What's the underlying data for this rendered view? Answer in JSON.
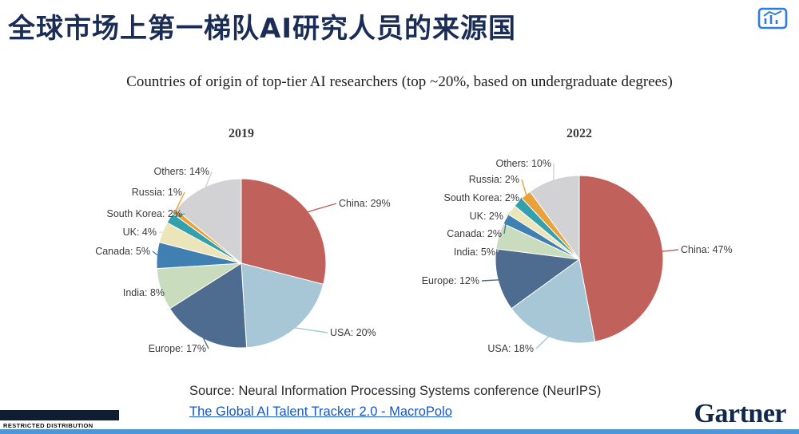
{
  "page": {
    "title_zh": "全球市场上第一梯队AI研究人员的来源国",
    "subtitle": "Countries of origin of top-tier AI researchers (top ~20%, based on undergraduate degrees)",
    "source_line1": "Source: Neural Information Processing Systems conference (NeurIPS)",
    "source_link": "The Global AI Talent Tracker 2.0 - MacroPolo",
    "footer_classification": "RESTRICTED DISTRIBUTION",
    "brand": "Gartner",
    "header_icon": "chart-presentation-icon"
  },
  "colors": {
    "title_navy": "#1b2d55",
    "brand_navy": "#13294b",
    "link_blue": "#1356cc",
    "strip_blue": "#4e96d8",
    "bar_dark": "#101c30",
    "icon_blue": "#2e7de2"
  },
  "chart_data": [
    {
      "type": "pie",
      "title": "2019",
      "labels": [
        "China",
        "USA",
        "Europe",
        "India",
        "Canada",
        "UK",
        "South Korea",
        "Russia",
        "Others"
      ],
      "values": [
        29,
        20,
        17,
        8,
        5,
        4,
        2,
        1,
        14
      ],
      "unit": "%",
      "colors": [
        "#c0625b",
        "#a7c6d6",
        "#4e6c90",
        "#cadcbe",
        "#3f7fb1",
        "#ece5b9",
        "#33a0ac",
        "#e9a23b",
        "#d2d2d4"
      ],
      "start_angle": "top",
      "direction": "clockwise",
      "label_style": "callout-labels-with-leader-lines"
    },
    {
      "type": "pie",
      "title": "2022",
      "labels": [
        "China",
        "USA",
        "Europe",
        "India",
        "Canada",
        "UK",
        "South Korea",
        "Russia",
        "Others"
      ],
      "values": [
        47,
        18,
        12,
        5,
        2,
        2,
        2,
        2,
        10
      ],
      "unit": "%",
      "colors": [
        "#c0625b",
        "#a7c6d6",
        "#4e6c90",
        "#cadcbe",
        "#3f7fb1",
        "#ece5b9",
        "#33a0ac",
        "#e9a23b",
        "#d2d2d4"
      ],
      "start_angle": "top",
      "direction": "clockwise",
      "label_style": "callout-labels-with-leader-lines"
    }
  ]
}
